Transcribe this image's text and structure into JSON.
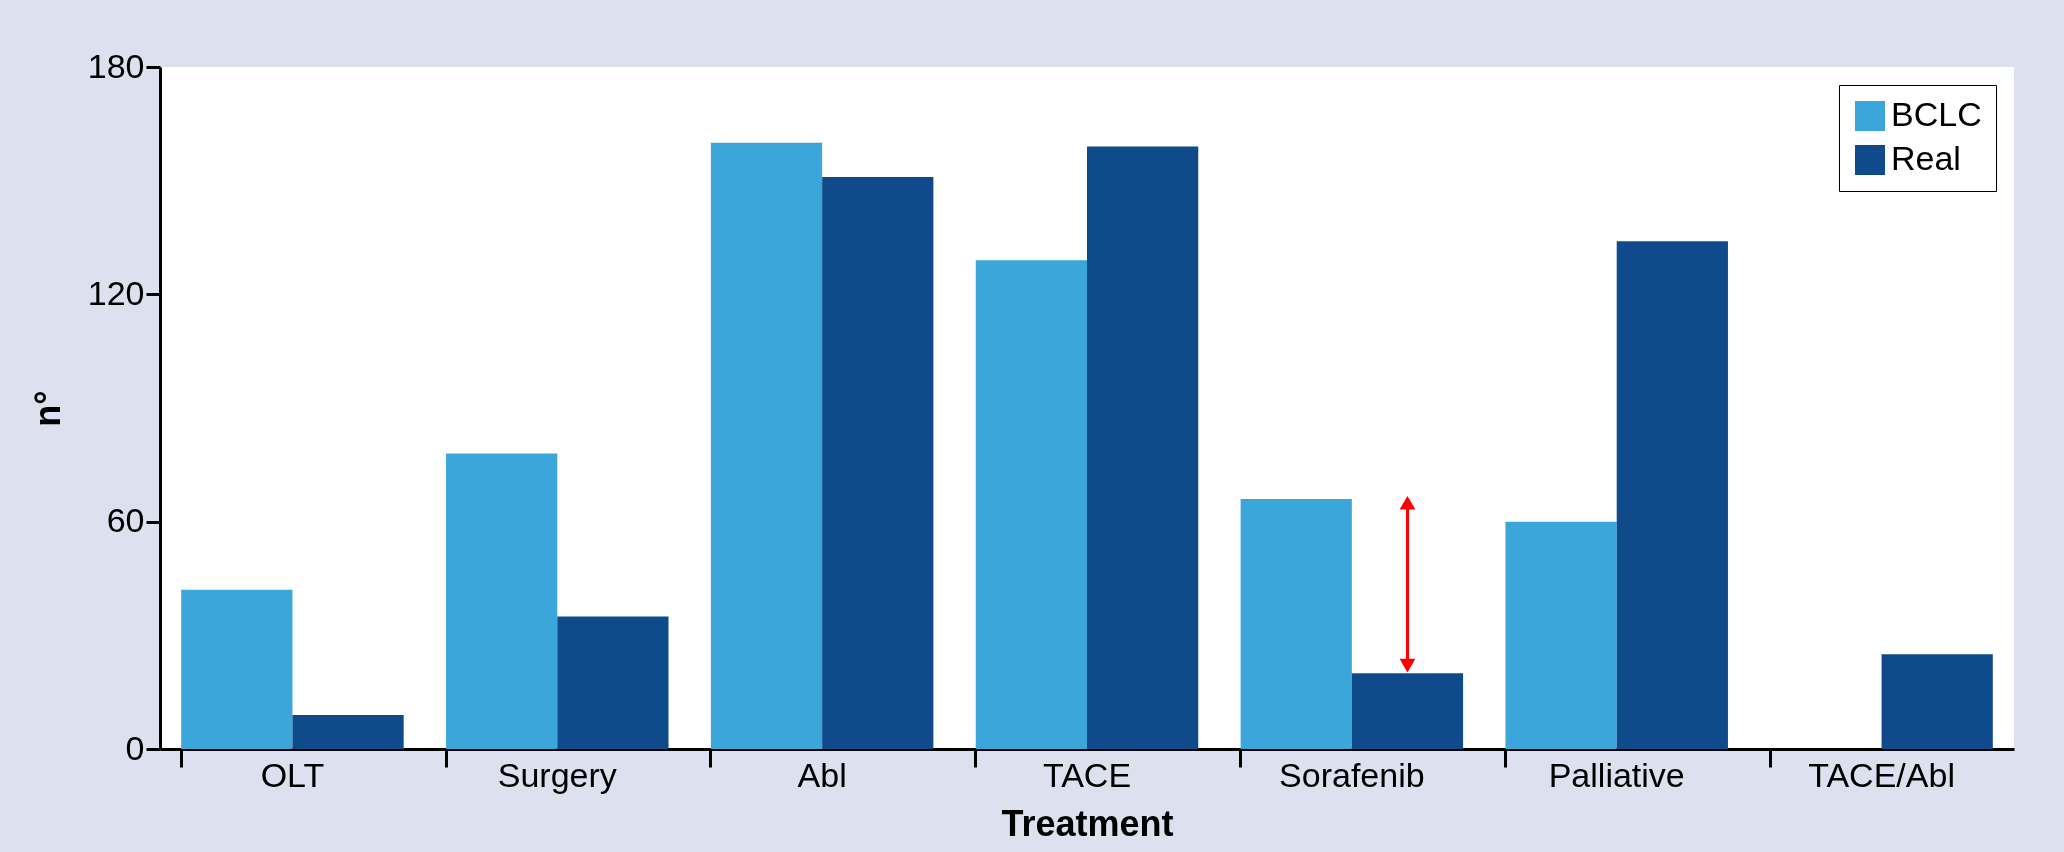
{
  "chart_data": {
    "type": "bar",
    "xlabel": "Treatment",
    "ylabel": "n°",
    "categories": [
      "OLT",
      "Surgery",
      "Abl",
      "TACE",
      "Sorafenib",
      "Palliative",
      "TACE/Abl"
    ],
    "series": [
      {
        "name": "BCLC",
        "color": "#3ba6da",
        "values": [
          42,
          78,
          160,
          129,
          66,
          60,
          null
        ]
      },
      {
        "name": "Real",
        "color": "#0f4a8a",
        "values": [
          9,
          35,
          151,
          159,
          20,
          134,
          25
        ]
      }
    ],
    "ylim": [
      0,
      180
    ],
    "yticks": [
      0,
      60,
      120,
      180
    ],
    "grid": false,
    "legend": "top right"
  }
}
